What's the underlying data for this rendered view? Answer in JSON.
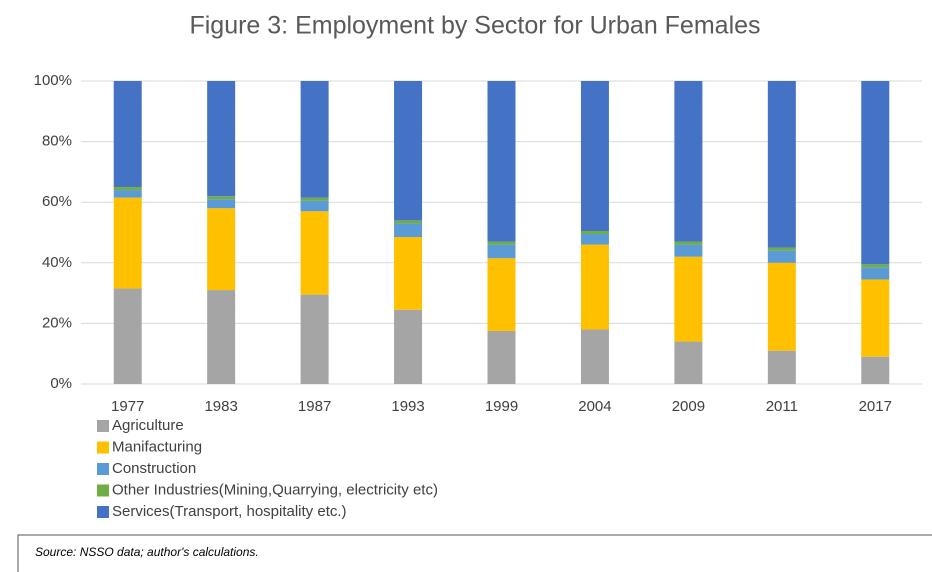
{
  "chart_data": {
    "type": "stacked_bar",
    "title": "Figure 3: Employment by Sector for Urban Females",
    "source": "Source: NSSO data; author's calculations.",
    "categories": [
      "1977",
      "1983",
      "1987",
      "1993",
      "1999",
      "2004",
      "2009",
      "2011",
      "2017"
    ],
    "series": [
      {
        "name": "Agriculture",
        "color": "#a5a5a5",
        "values": [
          31.5,
          31,
          29.5,
          24.5,
          17.5,
          18,
          14,
          11,
          9
        ]
      },
      {
        "name": "Manifacturing",
        "color": "#ffc000",
        "values": [
          30,
          27,
          27.5,
          24,
          24,
          28,
          28,
          29,
          25.5
        ]
      },
      {
        "name": "Construction",
        "color": "#5b9bd5",
        "values": [
          2.5,
          3,
          3.5,
          4.5,
          4.5,
          3.5,
          4,
          4,
          4
        ]
      },
      {
        "name": "Other Industries(Mining,Quarrying, electricity etc)",
        "color": "#70ad47",
        "values": [
          1,
          1,
          1,
          1,
          1,
          1,
          1,
          1,
          1
        ]
      },
      {
        "name": "Services(Transport, hospitality etc.)",
        "color": "#4472c4",
        "values": [
          35,
          38,
          38.5,
          46,
          53,
          49.5,
          53,
          55,
          60.5
        ]
      }
    ],
    "ylim": [
      0,
      100
    ],
    "yticks": [
      {
        "value": 0,
        "label": "0%"
      },
      {
        "value": 20,
        "label": "20%"
      },
      {
        "value": 40,
        "label": "40%"
      },
      {
        "value": 60,
        "label": "60%"
      },
      {
        "value": 80,
        "label": "80%"
      },
      {
        "value": 100,
        "label": "100%"
      }
    ],
    "grid": true,
    "legend": "bottom-left"
  }
}
